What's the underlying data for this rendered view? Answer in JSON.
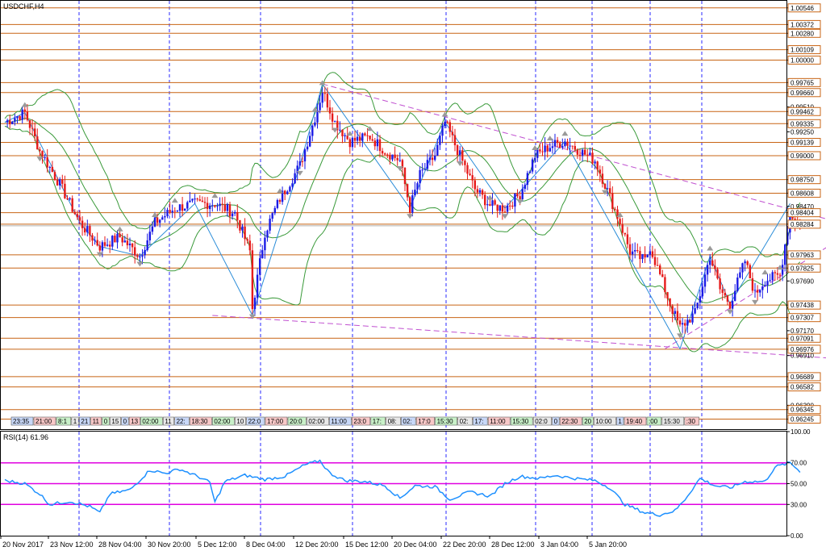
{
  "header": {
    "symbol_timeframe": "USDCHF,H4"
  },
  "rsi_panel": {
    "label": "RSI(14) 61.96"
  },
  "chart_data": [
    {
      "type": "candlestick",
      "title": "USDCHF,H4",
      "ylim": [
        0.9614,
        1.0062
      ],
      "grid": true,
      "price_levels": [
        1.00546,
        1.00372,
        1.0028,
        1.00109,
        1.0,
        0.99765,
        0.9966,
        0.99462,
        0.99335,
        0.99139,
        0.99,
        0.9875,
        0.98608,
        0.98404,
        0.98284,
        0.97963,
        0.97825,
        0.97438,
        0.97307,
        0.97091,
        0.96976,
        0.96689,
        0.96582,
        0.96345,
        0.96245
      ],
      "y_ticks": [
        "1.00546",
        "1.00372",
        "1.00280",
        "1.00109",
        "1.00000",
        "0.99765",
        "0.99660",
        "0.99510",
        "0.99462",
        "0.99335",
        "0.99250",
        "0.99139",
        "0.99000",
        "0.98750",
        "0.98608",
        "0.98470",
        "0.98404",
        "0.98284",
        "0.97963",
        "0.97825",
        "0.97690",
        "0.97438",
        "0.97307",
        "0.97170",
        "0.97091",
        "0.96976",
        "0.96910",
        "0.96689",
        "0.96582",
        "0.96390",
        "0.96345",
        "0.96245"
      ],
      "highlighted_ticks": [
        "1.00546",
        "1.00372",
        "1.00280",
        "1.00109",
        "1.00000",
        "0.99765",
        "0.99660",
        "0.99462",
        "0.99335",
        "0.99139",
        "0.99000",
        "0.98750",
        "0.98608",
        "0.98404",
        "0.98284",
        "0.97963",
        "0.97825",
        "0.97438",
        "0.97307",
        "0.97091",
        "0.96976",
        "0.96689",
        "0.96582",
        "0.96345",
        "0.96245"
      ],
      "current_price": 0.98284,
      "x_labels": [
        "20 Nov 2017",
        "23 Nov 12:00",
        "28 Nov 04:00",
        "30 Nov 20:00",
        "5 Dec 12:00",
        "8 Dec 04:00",
        "12 Dec 20:00",
        "15 Dec 12:00",
        "20 Dec 04:00",
        "22 Dec 20:00",
        "28 Dec 12:00",
        "3 Jan 04:00",
        "5 Jan 20:00"
      ],
      "time_strip_labels": [
        "23:35",
        "21:00",
        "8:1",
        "1",
        "21",
        "11",
        "0",
        "15",
        "0",
        "13",
        "02:00",
        "11",
        "22:",
        "18:30",
        "02:00",
        "10",
        "22:0",
        "17:00",
        "20:0",
        "02:00",
        "11:00",
        "23:0",
        "17:",
        "08:",
        "02:",
        "17:0",
        "15:30",
        "02:",
        "17:",
        "11:00",
        "15:30",
        "02:0",
        "0",
        "22:30",
        "20",
        "10:00",
        "1",
        "19:40",
        ":00",
        "15:30",
        "21:00",
        ":30"
      ],
      "anchors": [
        [
          0,
          0.9935
        ],
        [
          8,
          0.9945
        ],
        [
          14,
          0.9905
        ],
        [
          22,
          0.987
        ],
        [
          30,
          0.983
        ],
        [
          38,
          0.9805
        ],
        [
          46,
          0.9815
        ],
        [
          54,
          0.9795
        ],
        [
          60,
          0.983
        ],
        [
          68,
          0.9845
        ],
        [
          76,
          0.985
        ],
        [
          84,
          0.985
        ],
        [
          92,
          0.984
        ],
        [
          98,
          0.98
        ],
        [
          99,
          0.974
        ],
        [
          104,
          0.982
        ],
        [
          110,
          0.9855
        ],
        [
          118,
          0.989
        ],
        [
          124,
          0.994
        ],
        [
          127,
          0.9968
        ],
        [
          132,
          0.9935
        ],
        [
          138,
          0.9915
        ],
        [
          146,
          0.992
        ],
        [
          152,
          0.9905
        ],
        [
          158,
          0.9895
        ],
        [
          162,
          0.9845
        ],
        [
          166,
          0.988
        ],
        [
          172,
          0.99
        ],
        [
          176,
          0.9935
        ],
        [
          182,
          0.99
        ],
        [
          188,
          0.9865
        ],
        [
          194,
          0.9848
        ],
        [
          200,
          0.9845
        ],
        [
          206,
          0.986
        ],
        [
          212,
          0.99
        ],
        [
          218,
          0.991
        ],
        [
          224,
          0.9915
        ],
        [
          230,
          0.9905
        ],
        [
          236,
          0.9895
        ],
        [
          240,
          0.987
        ],
        [
          246,
          0.983
        ],
        [
          250,
          0.98
        ],
        [
          256,
          0.979
        ],
        [
          258,
          0.9805
        ],
        [
          260,
          0.979
        ],
        [
          266,
          0.9745
        ],
        [
          270,
          0.972
        ],
        [
          276,
          0.9735
        ],
        [
          282,
          0.9795
        ],
        [
          286,
          0.976
        ],
        [
          290,
          0.9745
        ],
        [
          296,
          0.979
        ],
        [
          300,
          0.9755
        ],
        [
          304,
          0.977
        ],
        [
          310,
          0.9775
        ],
        [
          314,
          0.984
        ],
        [
          318,
          0.9825
        ]
      ],
      "bands": {
        "type": "bollinger",
        "color": "#3a9a3a"
      },
      "trendlines": [
        {
          "from": [
            127,
            0.9975
          ],
          "to": [
            387,
            0.9793
          ]
        },
        {
          "from": [
            83,
            0.9733
          ],
          "to": [
            387,
            0.9678
          ]
        },
        {
          "from": [
            264,
            0.9698
          ],
          "to": [
            387,
            0.99
          ]
        }
      ]
    },
    {
      "type": "line",
      "title": "RSI(14) 61.96",
      "indicator": "RSI(14)",
      "last_value": 61.96,
      "ylim": [
        0,
        100
      ],
      "y_ticks": [
        "100.00",
        "70.00",
        "50.00",
        "30.00",
        "0.00"
      ],
      "levels": [
        70,
        50,
        30
      ],
      "anchors": [
        [
          0,
          53
        ],
        [
          8,
          50
        ],
        [
          14,
          40
        ],
        [
          18,
          30
        ],
        [
          26,
          33
        ],
        [
          34,
          28
        ],
        [
          38,
          22
        ],
        [
          42,
          40
        ],
        [
          50,
          44
        ],
        [
          58,
          63
        ],
        [
          64,
          60
        ],
        [
          70,
          64
        ],
        [
          78,
          56
        ],
        [
          82,
          51
        ],
        [
          84,
          32
        ],
        [
          88,
          52
        ],
        [
          96,
          58
        ],
        [
          104,
          54
        ],
        [
          112,
          57
        ],
        [
          120,
          68
        ],
        [
          126,
          72
        ],
        [
          130,
          60
        ],
        [
          136,
          53
        ],
        [
          144,
          52
        ],
        [
          152,
          48
        ],
        [
          158,
          36
        ],
        [
          164,
          48
        ],
        [
          172,
          47
        ],
        [
          178,
          35
        ],
        [
          186,
          42
        ],
        [
          194,
          38
        ],
        [
          200,
          50
        ],
        [
          206,
          57
        ],
        [
          214,
          55
        ],
        [
          220,
          58
        ],
        [
          228,
          55
        ],
        [
          236,
          53
        ],
        [
          242,
          46
        ],
        [
          248,
          30
        ],
        [
          256,
          22
        ],
        [
          262,
          20
        ],
        [
          268,
          24
        ],
        [
          272,
          35
        ],
        [
          278,
          55
        ],
        [
          284,
          48
        ],
        [
          290,
          46
        ],
        [
          296,
          52
        ],
        [
          304,
          52
        ],
        [
          308,
          66
        ],
        [
          314,
          70
        ],
        [
          318,
          62
        ]
      ]
    }
  ]
}
